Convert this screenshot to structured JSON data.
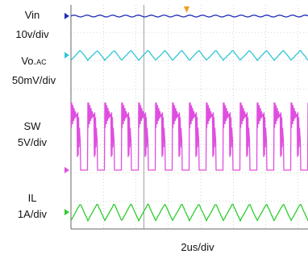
{
  "chart_data": {
    "type": "line",
    "xlabel": "2us/div",
    "grid": true,
    "channels": [
      {
        "id": "vin",
        "label": "Vin",
        "scale": "10v/div",
        "color": "#1f2fb8",
        "waveform": "dc",
        "divisions_from_bottom": 7.6
      },
      {
        "id": "vo",
        "label": "Vo.",
        "label_sub": "AC",
        "scale": "50mV/div",
        "color": "#2fc6d6",
        "waveform": "triangle_ripple",
        "ripple_div": 0.35,
        "periods": 14,
        "divisions_from_bottom": 6.2
      },
      {
        "id": "sw",
        "label": "SW",
        "scale": "5V/div",
        "color": "#e04ee0",
        "waveform": "switching_pulse",
        "amplitude_div": 2.3,
        "periods": 14,
        "divisions_from_bottom": 2.1
      },
      {
        "id": "il",
        "label": "IL",
        "scale": "1A/div",
        "color": "#2ecc2e",
        "waveform": "triangle",
        "amplitude_div": 0.6,
        "periods": 14,
        "divisions_from_bottom": 0.6
      }
    ]
  }
}
